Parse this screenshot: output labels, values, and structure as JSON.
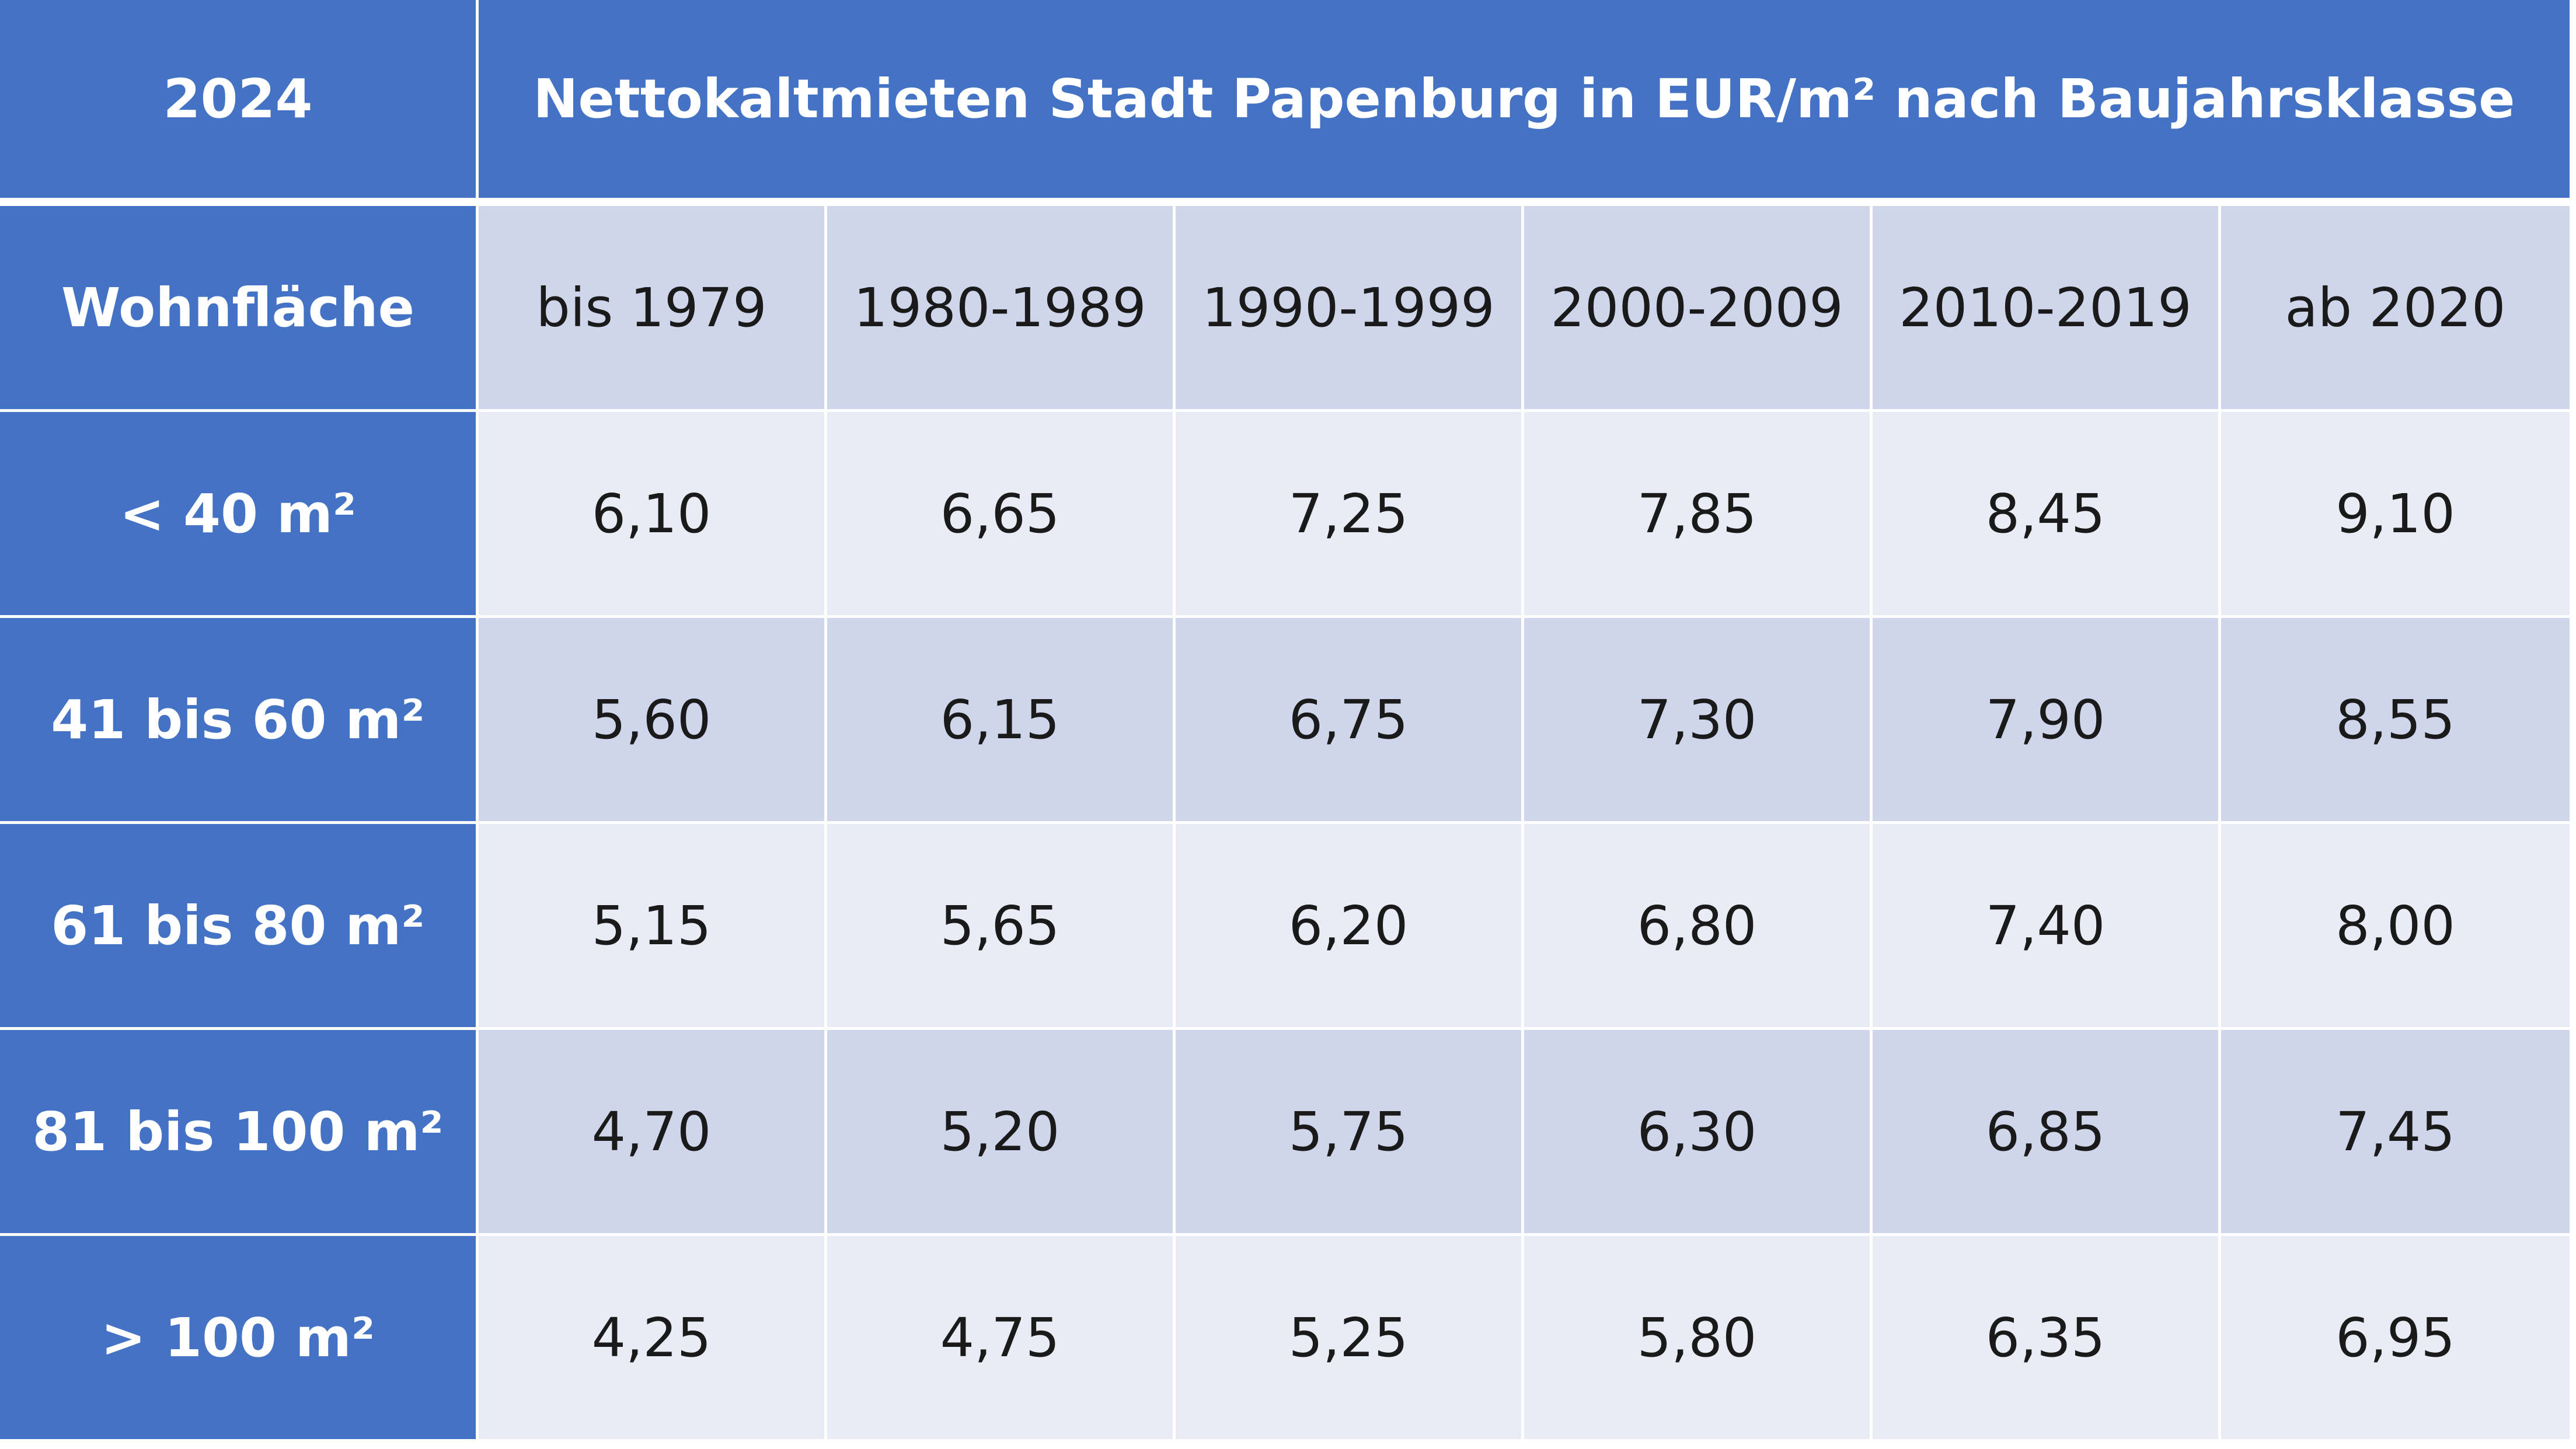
{
  "header": {
    "year": "2024",
    "title": "Nettokaltmieten Stadt Papenburg in EUR/m² nach Baujahrsklasse"
  },
  "table": {
    "row_header_label": "Wohnfläche",
    "columns": [
      "bis 1979",
      "1980-1989",
      "1990-1999",
      "2000-2009",
      "2010-2019",
      "ab 2020"
    ],
    "rows": [
      {
        "label": "< 40 m²",
        "values": [
          "6,10",
          "6,65",
          "7,25",
          "7,85",
          "8,45",
          "9,10"
        ]
      },
      {
        "label": "41 bis 60 m²",
        "values": [
          "5,60",
          "6,15",
          "6,75",
          "7,30",
          "7,90",
          "8,55"
        ]
      },
      {
        "label": "61 bis 80 m²",
        "values": [
          "5,15",
          "5,65",
          "6,20",
          "6,80",
          "7,40",
          "8,00"
        ]
      },
      {
        "label": "81 bis 100 m²",
        "values": [
          "4,70",
          "5,20",
          "5,75",
          "6,30",
          "6,85",
          "7,45"
        ]
      },
      {
        "label": "> 100 m²",
        "values": [
          "4,25",
          "4,75",
          "5,25",
          "5,80",
          "6,35",
          "6,95"
        ]
      }
    ]
  },
  "colors": {
    "header_blue": "#4472c4",
    "band_light": "#e9ebf5",
    "band_dark": "#cfd5ea"
  }
}
